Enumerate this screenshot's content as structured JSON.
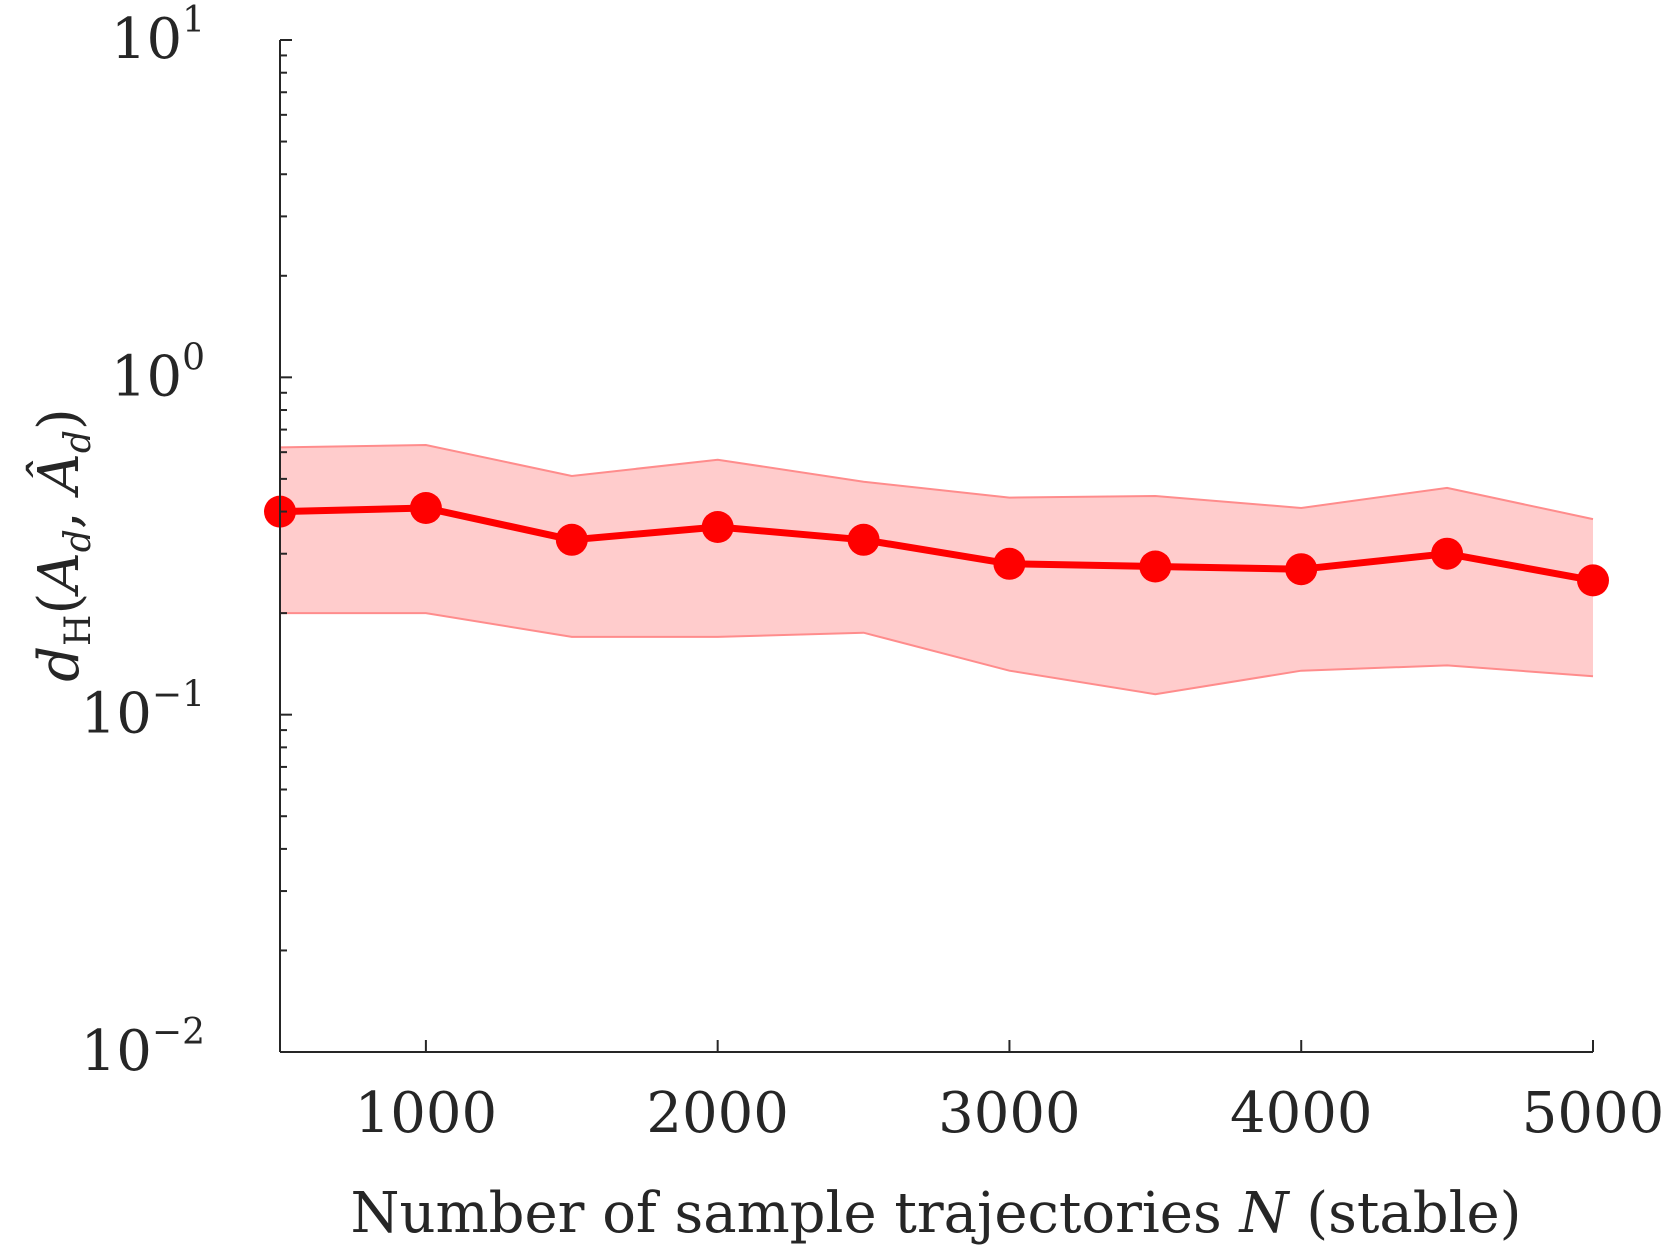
{
  "chart_data": {
    "type": "line",
    "x_axis": {
      "label": "Number of sample trajectories N (stable)",
      "label_parts": {
        "pre": "Number of sample trajectories ",
        "var": "N",
        "post": " (stable)"
      },
      "lim": [
        500,
        5000
      ],
      "ticks": [
        1000,
        2000,
        3000,
        4000,
        5000
      ],
      "tick_labels": [
        "1000",
        "2000",
        "3000",
        "4000",
        "5000"
      ]
    },
    "y_axis": {
      "label": "d_H(A_d, Â_d)",
      "scale": "log",
      "lim": [
        0.01,
        10
      ],
      "ticks": [
        0.01,
        0.1,
        1,
        10
      ],
      "tick_labels": [
        {
          "base": "10",
          "exp": "−2"
        },
        {
          "base": "10",
          "exp": "−1"
        },
        {
          "base": "10",
          "exp": "0"
        },
        {
          "base": "10",
          "exp": "1"
        }
      ]
    },
    "grid": false,
    "colors": {
      "line": "#ff0000",
      "band_fill": "#ffcccc",
      "band_edge": "#ff8c8c"
    },
    "x": [
      500,
      1000,
      1500,
      2000,
      2500,
      3000,
      3500,
      4000,
      4500,
      5000
    ],
    "series": [
      {
        "mean": [
          0.4,
          0.41,
          0.33,
          0.36,
          0.33,
          0.28,
          0.275,
          0.27,
          0.3,
          0.25
        ],
        "upper": [
          0.62,
          0.63,
          0.51,
          0.57,
          0.49,
          0.44,
          0.445,
          0.41,
          0.47,
          0.38
        ],
        "lower": [
          0.2,
          0.2,
          0.17,
          0.17,
          0.175,
          0.135,
          0.115,
          0.135,
          0.14,
          0.13
        ]
      }
    ]
  }
}
